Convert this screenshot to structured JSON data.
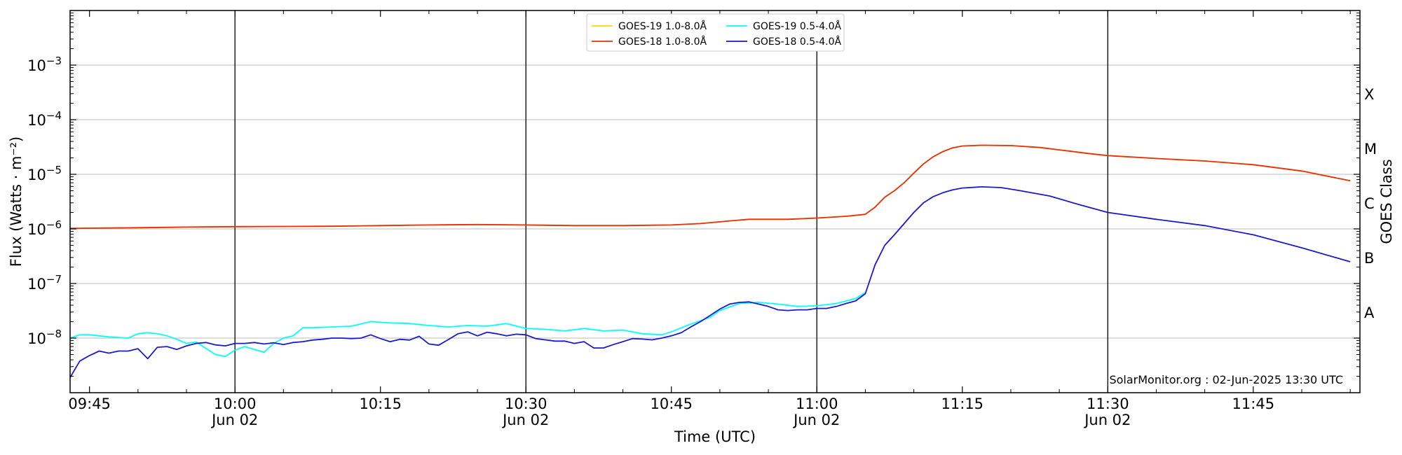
{
  "chart_data": {
    "type": "line",
    "date_label": "Jun 02",
    "xlabel": "Time (UTC)",
    "ylabel": "Flux (Watts · m⁻²)",
    "y2label": "GOES Class",
    "xlim": [
      "09:43",
      "11:56"
    ],
    "ylim": [
      1e-09,
      0.01
    ],
    "yscale": "log",
    "grid": "horizontal",
    "legend_position": "top-center",
    "x_ticks": [
      {
        "time": "09:45",
        "label": "09:45",
        "date_line": false
      },
      {
        "time": "10:00",
        "label": "10:00",
        "date_line": true
      },
      {
        "time": "10:15",
        "label": "10:15",
        "date_line": false
      },
      {
        "time": "10:30",
        "label": "10:30",
        "date_line": true
      },
      {
        "time": "10:45",
        "label": "10:45",
        "date_line": false
      },
      {
        "time": "11:00",
        "label": "11:00",
        "date_line": true
      },
      {
        "time": "11:15",
        "label": "11:15",
        "date_line": false
      },
      {
        "time": "11:30",
        "label": "11:30",
        "date_line": true
      },
      {
        "time": "11:45",
        "label": "11:45",
        "date_line": false
      }
    ],
    "y_ticks": [
      {
        "value": 1e-08,
        "mantissa": "10",
        "exp": "−8"
      },
      {
        "value": 1e-07,
        "mantissa": "10",
        "exp": "−7"
      },
      {
        "value": 1e-06,
        "mantissa": "10",
        "exp": "−6"
      },
      {
        "value": 1e-05,
        "mantissa": "10",
        "exp": "−5"
      },
      {
        "value": 0.0001,
        "mantissa": "10",
        "exp": "−4"
      },
      {
        "value": 0.001,
        "mantissa": "10",
        "exp": "−3"
      }
    ],
    "vlines": [
      "10:00",
      "10:30",
      "11:00",
      "11:30"
    ],
    "goes_classes": [
      {
        "label": "A",
        "value": 3e-08
      },
      {
        "label": "B",
        "value": 3e-07
      },
      {
        "label": "C",
        "value": 3e-06
      },
      {
        "label": "M",
        "value": 3e-05
      },
      {
        "label": "X",
        "value": 0.0003
      }
    ],
    "legend": [
      {
        "name": "GOES-19 1.0-8.0Å",
        "color": "#ffd700"
      },
      {
        "name": "GOES-18 1.0-8.0Å",
        "color": "#e8300c"
      },
      {
        "name": "GOES-19 0.5-4.0Å",
        "color": "#00ffff"
      },
      {
        "name": "GOES-18 0.5-4.0Å",
        "color": "#1a1acd"
      }
    ],
    "series": [
      {
        "name": "GOES-19 1.0-8.0Å",
        "color": "#ffd700",
        "points": [
          [
            "09:43",
            1.02e-06
          ],
          [
            "09:50",
            1.05e-06
          ],
          [
            "09:55",
            1.08e-06
          ],
          [
            "10:00",
            1.1e-06
          ],
          [
            "10:10",
            1.12e-06
          ],
          [
            "10:15",
            1.15e-06
          ],
          [
            "10:20",
            1.18e-06
          ],
          [
            "10:25",
            1.2e-06
          ],
          [
            "10:30",
            1.18e-06
          ],
          [
            "10:35",
            1.15e-06
          ],
          [
            "10:40",
            1.15e-06
          ],
          [
            "10:45",
            1.18e-06
          ],
          [
            "10:48",
            1.25e-06
          ],
          [
            "10:51",
            1.4e-06
          ],
          [
            "10:53",
            1.5e-06
          ],
          [
            "10:57",
            1.5e-06
          ],
          [
            "11:00",
            1.58e-06
          ],
          [
            "11:03",
            1.7e-06
          ],
          [
            "11:05",
            1.85e-06
          ],
          [
            "11:06",
            2.5e-06
          ],
          [
            "11:07",
            3.8e-06
          ],
          [
            "11:08",
            5e-06
          ],
          [
            "11:09",
            7e-06
          ],
          [
            "11:10",
            1.05e-05
          ],
          [
            "11:11",
            1.55e-05
          ],
          [
            "11:12",
            2.1e-05
          ],
          [
            "11:13",
            2.6e-05
          ],
          [
            "11:14",
            3.05e-05
          ],
          [
            "11:15",
            3.3e-05
          ],
          [
            "11:17",
            3.4e-05
          ],
          [
            "11:20",
            3.35e-05
          ],
          [
            "11:23",
            3.1e-05
          ],
          [
            "11:25",
            2.8e-05
          ],
          [
            "11:28",
            2.4e-05
          ],
          [
            "11:30",
            2.2e-05
          ],
          [
            "11:35",
            1.95e-05
          ],
          [
            "11:40",
            1.75e-05
          ],
          [
            "11:45",
            1.5e-05
          ],
          [
            "11:50",
            1.15e-05
          ],
          [
            "11:55",
            7.6e-06
          ]
        ]
      },
      {
        "name": "GOES-18 1.0-8.0Å",
        "color": "#e8300c",
        "points": [
          [
            "09:43",
            1.02e-06
          ],
          [
            "09:50",
            1.05e-06
          ],
          [
            "09:55",
            1.08e-06
          ],
          [
            "10:00",
            1.1e-06
          ],
          [
            "10:10",
            1.12e-06
          ],
          [
            "10:15",
            1.15e-06
          ],
          [
            "10:20",
            1.18e-06
          ],
          [
            "10:25",
            1.2e-06
          ],
          [
            "10:30",
            1.18e-06
          ],
          [
            "10:35",
            1.15e-06
          ],
          [
            "10:40",
            1.15e-06
          ],
          [
            "10:45",
            1.18e-06
          ],
          [
            "10:48",
            1.25e-06
          ],
          [
            "10:51",
            1.4e-06
          ],
          [
            "10:53",
            1.5e-06
          ],
          [
            "10:57",
            1.5e-06
          ],
          [
            "11:00",
            1.58e-06
          ],
          [
            "11:03",
            1.7e-06
          ],
          [
            "11:05",
            1.85e-06
          ],
          [
            "11:06",
            2.5e-06
          ],
          [
            "11:07",
            3.8e-06
          ],
          [
            "11:08",
            5e-06
          ],
          [
            "11:09",
            7e-06
          ],
          [
            "11:10",
            1.05e-05
          ],
          [
            "11:11",
            1.55e-05
          ],
          [
            "11:12",
            2.1e-05
          ],
          [
            "11:13",
            2.6e-05
          ],
          [
            "11:14",
            3.05e-05
          ],
          [
            "11:15",
            3.3e-05
          ],
          [
            "11:17",
            3.4e-05
          ],
          [
            "11:20",
            3.35e-05
          ],
          [
            "11:23",
            3.1e-05
          ],
          [
            "11:25",
            2.8e-05
          ],
          [
            "11:28",
            2.4e-05
          ],
          [
            "11:30",
            2.2e-05
          ],
          [
            "11:35",
            1.95e-05
          ],
          [
            "11:40",
            1.75e-05
          ],
          [
            "11:45",
            1.5e-05
          ],
          [
            "11:50",
            1.15e-05
          ],
          [
            "11:55",
            7.6e-06
          ]
        ]
      },
      {
        "name": "GOES-19 0.5-4.0Å",
        "color": "#00ffff",
        "points": [
          [
            "09:43",
            1e-08
          ],
          [
            "09:44",
            1.15e-08
          ],
          [
            "09:45",
            1.15e-08
          ],
          [
            "09:47",
            1.05e-08
          ],
          [
            "09:49",
            1e-08
          ],
          [
            "09:50",
            1.2e-08
          ],
          [
            "09:51",
            1.25e-08
          ],
          [
            "09:52",
            1.2e-08
          ],
          [
            "09:53",
            1.1e-08
          ],
          [
            "09:54",
            9.5e-09
          ],
          [
            "09:55",
            8e-09
          ],
          [
            "09:56",
            8.5e-09
          ],
          [
            "09:57",
            6.5e-09
          ],
          [
            "09:58",
            5e-09
          ],
          [
            "09:59",
            4.6e-09
          ],
          [
            "10:00",
            6e-09
          ],
          [
            "10:01",
            7e-09
          ],
          [
            "10:02",
            6.2e-09
          ],
          [
            "10:03",
            5.5e-09
          ],
          [
            "10:04",
            8e-09
          ],
          [
            "10:05",
            1e-08
          ],
          [
            "10:06",
            1.1e-08
          ],
          [
            "10:07",
            1.55e-08
          ],
          [
            "10:08",
            1.55e-08
          ],
          [
            "10:10",
            1.6e-08
          ],
          [
            "10:12",
            1.65e-08
          ],
          [
            "10:14",
            2e-08
          ],
          [
            "10:16",
            1.9e-08
          ],
          [
            "10:18",
            1.85e-08
          ],
          [
            "10:20",
            1.7e-08
          ],
          [
            "10:22",
            1.6e-08
          ],
          [
            "10:24",
            1.7e-08
          ],
          [
            "10:26",
            1.65e-08
          ],
          [
            "10:28",
            1.85e-08
          ],
          [
            "10:30",
            1.5e-08
          ],
          [
            "10:32",
            1.45e-08
          ],
          [
            "10:34",
            1.35e-08
          ],
          [
            "10:36",
            1.5e-08
          ],
          [
            "10:38",
            1.35e-08
          ],
          [
            "10:40",
            1.4e-08
          ],
          [
            "10:42",
            1.2e-08
          ],
          [
            "10:44",
            1.15e-08
          ],
          [
            "10:45",
            1.3e-08
          ],
          [
            "10:47",
            1.8e-08
          ],
          [
            "10:49",
            2.4e-08
          ],
          [
            "10:50",
            3.2e-08
          ],
          [
            "10:52",
            4.3e-08
          ],
          [
            "10:54",
            4.5e-08
          ],
          [
            "10:56",
            4.2e-08
          ],
          [
            "10:58",
            3.8e-08
          ],
          [
            "11:00",
            3.9e-08
          ],
          [
            "11:02",
            4.3e-08
          ],
          [
            "11:04",
            5.3e-08
          ],
          [
            "11:05",
            6.8e-08
          ]
        ]
      },
      {
        "name": "GOES-18 0.5-4.0Å",
        "color": "#1a1acd",
        "points": [
          [
            "09:43",
            1.9e-09
          ],
          [
            "09:44",
            3.8e-09
          ],
          [
            "09:45",
            4.8e-09
          ],
          [
            "09:46",
            5.8e-09
          ],
          [
            "09:47",
            5.3e-09
          ],
          [
            "09:48",
            5.8e-09
          ],
          [
            "09:49",
            5.8e-09
          ],
          [
            "09:50",
            6.4e-09
          ],
          [
            "09:51",
            4.2e-09
          ],
          [
            "09:52",
            6.8e-09
          ],
          [
            "09:53",
            7e-09
          ],
          [
            "09:54",
            6.2e-09
          ],
          [
            "09:55",
            7.2e-09
          ],
          [
            "09:56",
            8e-09
          ],
          [
            "09:57",
            8.3e-09
          ],
          [
            "09:58",
            7.5e-09
          ],
          [
            "09:59",
            7.2e-09
          ],
          [
            "10:00",
            8e-09
          ],
          [
            "10:01",
            8e-09
          ],
          [
            "10:02",
            8.3e-09
          ],
          [
            "10:03",
            7.8e-09
          ],
          [
            "10:04",
            8.2e-09
          ],
          [
            "10:05",
            7.6e-09
          ],
          [
            "10:06",
            8.3e-09
          ],
          [
            "10:07",
            8.6e-09
          ],
          [
            "10:08",
            9.2e-09
          ],
          [
            "10:09",
            9.5e-09
          ],
          [
            "10:10",
            1e-08
          ],
          [
            "10:11",
            1e-08
          ],
          [
            "10:12",
            9.8e-09
          ],
          [
            "10:13",
            1e-08
          ],
          [
            "10:14",
            1.15e-08
          ],
          [
            "10:15",
            9.8e-09
          ],
          [
            "10:16",
            8.6e-09
          ],
          [
            "10:17",
            9.5e-09
          ],
          [
            "10:18",
            9.2e-09
          ],
          [
            "10:19",
            1.08e-08
          ],
          [
            "10:20",
            7.8e-09
          ],
          [
            "10:21",
            7.4e-09
          ],
          [
            "10:22",
            9.4e-09
          ],
          [
            "10:23",
            1.2e-08
          ],
          [
            "10:24",
            1.3e-08
          ],
          [
            "10:25",
            1.1e-08
          ],
          [
            "10:26",
            1.28e-08
          ],
          [
            "10:27",
            1.2e-08
          ],
          [
            "10:28",
            1.1e-08
          ],
          [
            "10:29",
            1.18e-08
          ],
          [
            "10:30",
            1.15e-08
          ],
          [
            "10:31",
            9.8e-09
          ],
          [
            "10:32",
            9.3e-09
          ],
          [
            "10:33",
            8.8e-09
          ],
          [
            "10:34",
            8.8e-09
          ],
          [
            "10:35",
            8e-09
          ],
          [
            "10:36",
            8.6e-09
          ],
          [
            "10:37",
            6.6e-09
          ],
          [
            "10:38",
            6.6e-09
          ],
          [
            "10:39",
            7.6e-09
          ],
          [
            "10:40",
            8.6e-09
          ],
          [
            "10:41",
            9.8e-09
          ],
          [
            "10:42",
            9.6e-09
          ],
          [
            "10:43",
            9.3e-09
          ],
          [
            "10:44",
            1e-08
          ],
          [
            "10:45",
            1.1e-08
          ],
          [
            "10:46",
            1.25e-08
          ],
          [
            "10:47",
            1.6e-08
          ],
          [
            "10:48",
            2e-08
          ],
          [
            "10:49",
            2.6e-08
          ],
          [
            "10:50",
            3.4e-08
          ],
          [
            "10:51",
            4.2e-08
          ],
          [
            "10:52",
            4.5e-08
          ],
          [
            "10:53",
            4.6e-08
          ],
          [
            "10:54",
            4.2e-08
          ],
          [
            "10:55",
            3.8e-08
          ],
          [
            "10:56",
            3.3e-08
          ],
          [
            "10:57",
            3.2e-08
          ],
          [
            "10:58",
            3.3e-08
          ],
          [
            "10:59",
            3.3e-08
          ],
          [
            "11:00",
            3.5e-08
          ],
          [
            "11:01",
            3.5e-08
          ],
          [
            "11:02",
            3.8e-08
          ],
          [
            "11:03",
            4.3e-08
          ],
          [
            "11:04",
            4.8e-08
          ],
          [
            "11:05",
            6.5e-08
          ],
          [
            "11:06",
            2.2e-07
          ],
          [
            "11:07",
            5e-07
          ],
          [
            "11:08",
            7.8e-07
          ],
          [
            "11:09",
            1.25e-06
          ],
          [
            "11:10",
            2e-06
          ],
          [
            "11:11",
            3e-06
          ],
          [
            "11:12",
            3.9e-06
          ],
          [
            "11:13",
            4.6e-06
          ],
          [
            "11:14",
            5.2e-06
          ],
          [
            "11:15",
            5.6e-06
          ],
          [
            "11:17",
            5.9e-06
          ],
          [
            "11:19",
            5.7e-06
          ],
          [
            "11:21",
            5e-06
          ],
          [
            "11:24",
            4e-06
          ],
          [
            "11:27",
            2.8e-06
          ],
          [
            "11:30",
            2e-06
          ],
          [
            "11:35",
            1.5e-06
          ],
          [
            "11:40",
            1.15e-06
          ],
          [
            "11:45",
            7.8e-07
          ],
          [
            "11:50",
            4.5e-07
          ],
          [
            "11:55",
            2.5e-07
          ]
        ]
      }
    ]
  },
  "credit": "SolarMonitor.org : 02-Jun-2025 13:30 UTC"
}
